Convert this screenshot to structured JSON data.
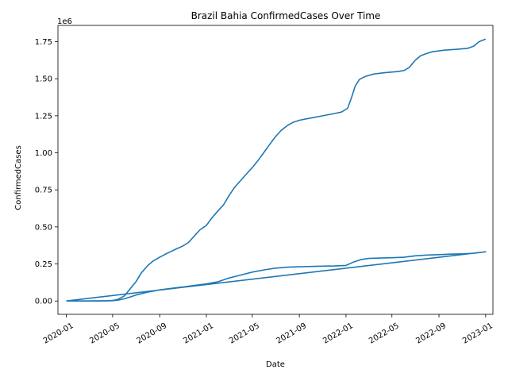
{
  "chart_data": {
    "type": "line",
    "title": "Brazil Bahia ConfirmedCases Over Time",
    "xlabel": "Date",
    "ylabel": "ConfirmedCases",
    "y_offset_text": "1e6",
    "x_ticks": [
      "2020-01",
      "2020-05",
      "2020-09",
      "2021-01",
      "2021-05",
      "2021-09",
      "2022-01",
      "2022-05",
      "2022-09",
      "2023-01"
    ],
    "y_ticks": [
      "0.00",
      "0.25",
      "0.50",
      "0.75",
      "1.00",
      "1.25",
      "1.50",
      "1.75"
    ],
    "xlim": [
      "2019-12-10",
      "2023-01-20"
    ],
    "ylim": [
      -0.09,
      1.86
    ],
    "y_multiplier": 1000000,
    "grid": false,
    "legend": "none",
    "line_color": "#1f77b4",
    "series": [
      {
        "points": [
          [
            "2020-01-01",
            0.0
          ],
          [
            "2020-03-01",
            0.0
          ],
          [
            "2020-04-15",
            0.001
          ],
          [
            "2020-05-01",
            0.003
          ],
          [
            "2020-05-15",
            0.012
          ],
          [
            "2020-06-01",
            0.035
          ],
          [
            "2020-06-15",
            0.08
          ],
          [
            "2020-07-01",
            0.13
          ],
          [
            "2020-07-15",
            0.19
          ],
          [
            "2020-08-01",
            0.24
          ],
          [
            "2020-08-15",
            0.27
          ],
          [
            "2020-09-01",
            0.295
          ],
          [
            "2020-09-15",
            0.315
          ],
          [
            "2020-10-01",
            0.335
          ],
          [
            "2020-10-15",
            0.352
          ],
          [
            "2020-11-01",
            0.372
          ],
          [
            "2020-11-15",
            0.395
          ],
          [
            "2020-12-01",
            0.44
          ],
          [
            "2020-12-15",
            0.48
          ],
          [
            "2021-01-01",
            0.51
          ],
          [
            "2021-01-15",
            0.56
          ],
          [
            "2021-02-01",
            0.61
          ],
          [
            "2021-02-15",
            0.65
          ],
          [
            "2021-03-01",
            0.71
          ],
          [
            "2021-03-15",
            0.765
          ],
          [
            "2021-04-01",
            0.815
          ],
          [
            "2021-04-15",
            0.855
          ],
          [
            "2021-05-01",
            0.9
          ],
          [
            "2021-05-15",
            0.945
          ],
          [
            "2021-06-01",
            1.005
          ],
          [
            "2021-06-15",
            1.055
          ],
          [
            "2021-07-01",
            1.11
          ],
          [
            "2021-07-15",
            1.15
          ],
          [
            "2021-08-01",
            1.185
          ],
          [
            "2021-08-15",
            1.205
          ],
          [
            "2021-09-01",
            1.22
          ],
          [
            "2021-10-01",
            1.235
          ],
          [
            "2021-11-01",
            1.25
          ],
          [
            "2021-12-01",
            1.265
          ],
          [
            "2021-12-20",
            1.275
          ],
          [
            "2022-01-05",
            1.3
          ],
          [
            "2022-01-15",
            1.37
          ],
          [
            "2022-01-25",
            1.45
          ],
          [
            "2022-02-05",
            1.495
          ],
          [
            "2022-02-20",
            1.515
          ],
          [
            "2022-03-15",
            1.532
          ],
          [
            "2022-04-15",
            1.542
          ],
          [
            "2022-05-15",
            1.548
          ],
          [
            "2022-06-01",
            1.555
          ],
          [
            "2022-06-15",
            1.575
          ],
          [
            "2022-07-01",
            1.625
          ],
          [
            "2022-07-15",
            1.655
          ],
          [
            "2022-08-01",
            1.672
          ],
          [
            "2022-08-15",
            1.682
          ],
          [
            "2022-09-15",
            1.693
          ],
          [
            "2022-10-15",
            1.698
          ],
          [
            "2022-11-15",
            1.705
          ],
          [
            "2022-12-01",
            1.72
          ],
          [
            "2022-12-15",
            1.75
          ],
          [
            "2023-01-01",
            1.768
          ]
        ]
      },
      {
        "points": [
          [
            "2020-01-01",
            0.0
          ],
          [
            "2020-03-01",
            0.0
          ],
          [
            "2020-04-15",
            0.001
          ],
          [
            "2020-05-01",
            0.002
          ],
          [
            "2020-05-15",
            0.006
          ],
          [
            "2020-06-01",
            0.015
          ],
          [
            "2020-06-15",
            0.027
          ],
          [
            "2020-07-01",
            0.04
          ],
          [
            "2020-08-01",
            0.06
          ],
          [
            "2020-09-01",
            0.075
          ],
          [
            "2020-10-01",
            0.085
          ],
          [
            "2020-11-01",
            0.095
          ],
          [
            "2020-12-01",
            0.105
          ],
          [
            "2021-01-01",
            0.115
          ],
          [
            "2021-02-01",
            0.13
          ],
          [
            "2021-03-01",
            0.155
          ],
          [
            "2021-04-01",
            0.175
          ],
          [
            "2021-05-01",
            0.195
          ],
          [
            "2021-06-01",
            0.21
          ],
          [
            "2021-07-01",
            0.222
          ],
          [
            "2021-08-01",
            0.228
          ],
          [
            "2021-09-01",
            0.231
          ],
          [
            "2021-10-01",
            0.233
          ],
          [
            "2021-11-01",
            0.235
          ],
          [
            "2021-12-01",
            0.236
          ],
          [
            "2022-01-01",
            0.24
          ],
          [
            "2022-01-20",
            0.262
          ],
          [
            "2022-02-10",
            0.28
          ],
          [
            "2022-03-01",
            0.287
          ],
          [
            "2022-04-01",
            0.29
          ],
          [
            "2022-05-01",
            0.292
          ],
          [
            "2022-06-01",
            0.295
          ],
          [
            "2022-07-01",
            0.305
          ],
          [
            "2022-08-01",
            0.31
          ],
          [
            "2022-09-01",
            0.313
          ],
          [
            "2022-10-01",
            0.316
          ],
          [
            "2022-11-01",
            0.318
          ],
          [
            "2022-12-01",
            0.322
          ],
          [
            "2023-01-01",
            0.332
          ],
          [
            "2020-01-01",
            0.0
          ]
        ]
      }
    ]
  }
}
